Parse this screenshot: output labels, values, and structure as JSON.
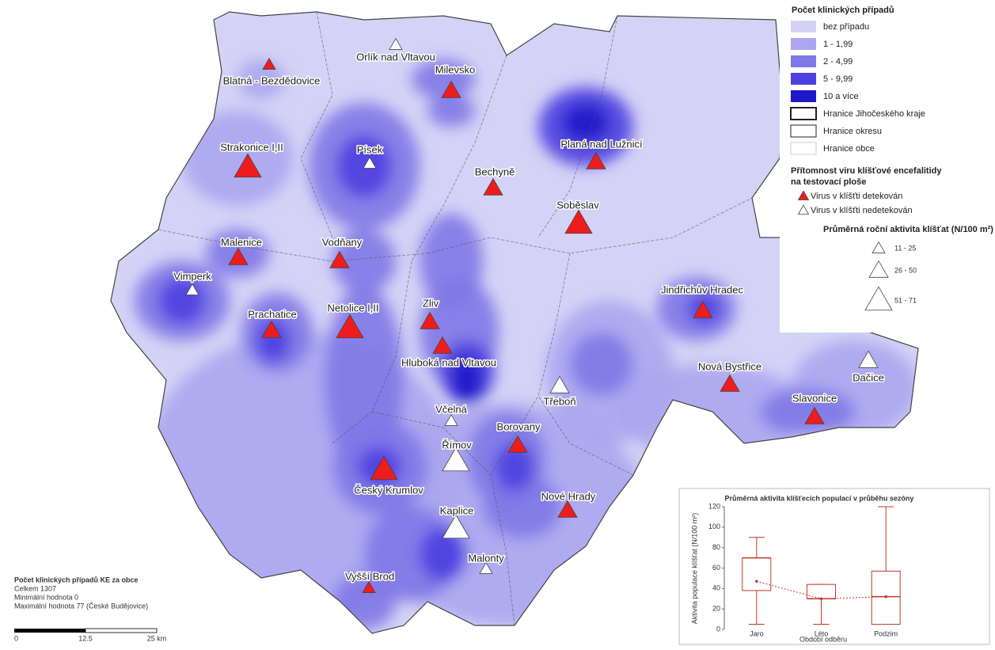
{
  "legend_cases": {
    "title": "Počet klinických případů",
    "classes": [
      {
        "label": "bez případu",
        "color": "#d4d3f6"
      },
      {
        "label": "1 - 1,99",
        "color": "#aaa6ef"
      },
      {
        "label": "2 - 4,99",
        "color": "#7f78e6"
      },
      {
        "label": "5 - 9,99",
        "color": "#4c40e0"
      },
      {
        "label": "10 a více",
        "color": "#1f18c8"
      }
    ],
    "borders": [
      "Hranice Jihočeského kraje",
      "Hranice okresu",
      "Hranice obce"
    ]
  },
  "legend_virus": {
    "title": "Přítomnost viru klíšťové encefalitidy na testovací ploše",
    "detected": "Virus v klíšťti detekován",
    "not_detected": "Virus v klíšťti nedetekován",
    "detected_color": "#ee1c1c",
    "not_detected_color": "#ffffff"
  },
  "legend_activity": {
    "title": "Průměrná roční aktivita klíšťat (N/100 m²)",
    "classes": [
      "11 - 25",
      "26 - 50",
      "51 - 71"
    ]
  },
  "sites": [
    {
      "name": "Blatná - Bezdědovice",
      "virus": true,
      "size": 0
    },
    {
      "name": "Orlík nad Vltavou",
      "virus": false,
      "size": 0
    },
    {
      "name": "Milevsko",
      "virus": true,
      "size": 1
    },
    {
      "name": "Písek",
      "virus": false,
      "size": 0
    },
    {
      "name": "Strakonice I,II",
      "virus": true,
      "size": 2
    },
    {
      "name": "Planá nad Lužnicí",
      "virus": true,
      "size": 1
    },
    {
      "name": "Bechyně",
      "virus": true,
      "size": 1
    },
    {
      "name": "Soběslav",
      "virus": true,
      "size": 2
    },
    {
      "name": "Malenice",
      "virus": true,
      "size": 1
    },
    {
      "name": "Vodňany",
      "virus": true,
      "size": 1
    },
    {
      "name": "Vimperk",
      "virus": false,
      "size": 0
    },
    {
      "name": "Prachatice",
      "virus": true,
      "size": 1
    },
    {
      "name": "Netolice I,II",
      "virus": true,
      "size": 2
    },
    {
      "name": "Zliv",
      "virus": true,
      "size": 1
    },
    {
      "name": "Hluboká nad Vltavou",
      "virus": true,
      "size": 1
    },
    {
      "name": "Jindřichův Hradec",
      "virus": true,
      "size": 1
    },
    {
      "name": "Třeboň",
      "virus": false,
      "size": 1
    },
    {
      "name": "Dačice",
      "virus": false,
      "size": 1
    },
    {
      "name": "Nová Bystřice",
      "virus": true,
      "size": 1
    },
    {
      "name": "Slavonice",
      "virus": true,
      "size": 1
    },
    {
      "name": "Včelná",
      "virus": false,
      "size": 0
    },
    {
      "name": "Borovany",
      "virus": true,
      "size": 1
    },
    {
      "name": "Římov",
      "virus": false,
      "size": 2
    },
    {
      "name": "Český Krumlov",
      "virus": true,
      "size": 2
    },
    {
      "name": "Nové Hrady",
      "virus": true,
      "size": 1
    },
    {
      "name": "Kaplice",
      "virus": false,
      "size": 2
    },
    {
      "name": "Malonty",
      "virus": false,
      "size": 0
    },
    {
      "name": "Vyšší Brod",
      "virus": true,
      "size": 0
    }
  ],
  "summary": {
    "title": "Počet klinických případů KE za obce",
    "lines": [
      "Celkem 1307",
      "Minimální hodnota 0",
      "Maximální hodnota 77 (České Budějovice)"
    ]
  },
  "scale_bar": {
    "labels": [
      "0",
      "12.5",
      "25 km"
    ]
  },
  "inset_chart": {
    "type": "box",
    "title": "Průměrná aktivita klíšťecích populací v průběhu sezóny",
    "y_label": "Aktivita populace klíšťat (N/100 m²)",
    "x_label": "Období odběru",
    "categories": [
      "Jaro",
      "Léto",
      "Podzim"
    ],
    "ylim": [
      0,
      120
    ],
    "yticks": [
      0,
      20,
      40,
      60,
      80,
      100,
      120
    ],
    "boxes": [
      {
        "min": 5,
        "q1": 38,
        "median": 70,
        "q3": 70,
        "max": 90
      },
      {
        "min": 5,
        "q1": 30,
        "median": 30,
        "q3": 44,
        "max": 44
      },
      {
        "min": 5,
        "q1": 5,
        "median": 32,
        "q3": 57,
        "max": 120
      }
    ],
    "means": [
      47,
      30,
      32
    ]
  }
}
